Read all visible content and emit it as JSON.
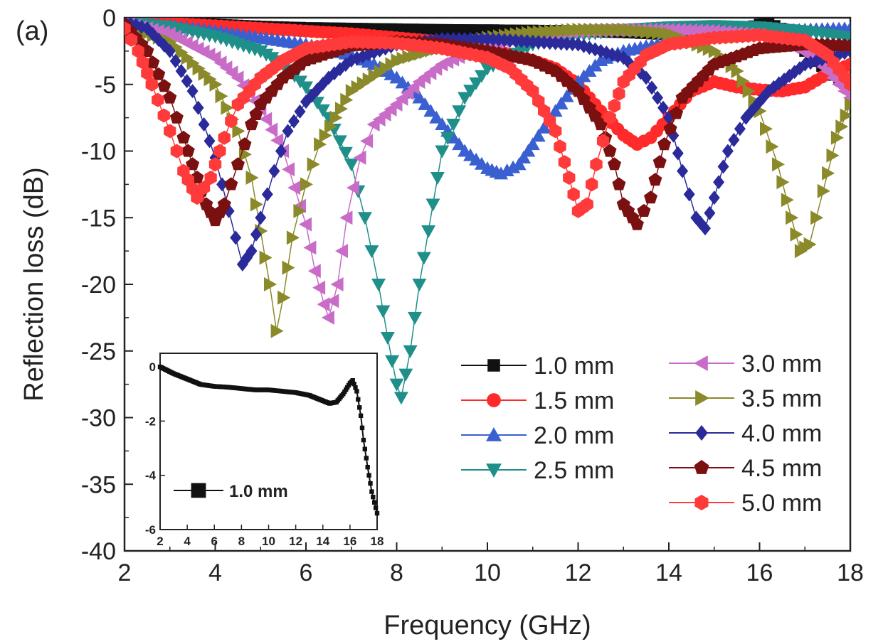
{
  "panel_label": "(a)",
  "colors": {
    "1.0 mm": "#111111",
    "1.5 mm": "#ff2a2a",
    "2.0 mm": "#3a5fd0",
    "2.5 mm": "#1f8f8a",
    "3.0 mm": "#c86cc8",
    "3.5 mm": "#8a8a2a",
    "4.0 mm": "#2a2a9a",
    "4.5 mm": "#7a1010",
    "5.0 mm": "#ff3a3a"
  },
  "chart_data": [
    {
      "type": "line",
      "title": "",
      "xlabel": "Frequency (GHz)",
      "ylabel": "Reflection loss (dB)",
      "xlim": [
        2,
        18
      ],
      "ylim": [
        -40,
        0
      ],
      "xticks": [
        2,
        4,
        6,
        8,
        10,
        12,
        14,
        16,
        18
      ],
      "yticks": [
        0,
        -5,
        -10,
        -15,
        -20,
        -25,
        -30,
        -35,
        -40
      ],
      "grid": false,
      "legend_position": "bottom-right",
      "series": [
        {
          "name": "1.0 mm",
          "marker": "square",
          "x": [
            2,
            3,
            4,
            5,
            6,
            7,
            8,
            9,
            10,
            11,
            12,
            13,
            14,
            14.5,
            15,
            15.5,
            16,
            16.2,
            16.6,
            17,
            17.5,
            18
          ],
          "y": [
            -0.1,
            -0.3,
            -0.5,
            -0.65,
            -0.75,
            -0.8,
            -0.85,
            -0.9,
            -0.92,
            -0.95,
            -1.0,
            -1.1,
            -1.25,
            -1.4,
            -1.3,
            -1.0,
            -0.5,
            -0.4,
            -1.0,
            -2.5,
            -4.0,
            -5.2
          ]
        },
        {
          "name": "1.5 mm",
          "marker": "circle",
          "x": [
            2,
            3,
            4,
            5,
            6,
            7,
            8,
            9,
            10,
            11,
            11.5,
            12,
            12.5,
            13,
            13.3,
            13.6,
            14,
            14.5,
            15,
            15.5,
            16,
            16.5,
            17,
            17.5,
            18
          ],
          "y": [
            -0.2,
            -0.4,
            -0.6,
            -0.8,
            -1.0,
            -1.2,
            -1.5,
            -1.8,
            -2.3,
            -3.2,
            -3.8,
            -5.0,
            -7.0,
            -8.8,
            -9.5,
            -9.0,
            -7.5,
            -5.5,
            -4.8,
            -5.2,
            -5.4,
            -5.5,
            -5.2,
            -4.2,
            -3.5
          ]
        },
        {
          "name": "2.0 mm",
          "marker": "triangle-up",
          "x": [
            2,
            3,
            4,
            5,
            6,
            7,
            7.5,
            8,
            8.5,
            9,
            9.5,
            10,
            10.3,
            10.7,
            11,
            11.5,
            12,
            12.5,
            13,
            14,
            15,
            16,
            17,
            18
          ],
          "y": [
            -0.3,
            -0.6,
            -1.0,
            -1.5,
            -2.0,
            -2.8,
            -3.5,
            -4.5,
            -6.0,
            -8.0,
            -10.0,
            -11.3,
            -11.7,
            -11.0,
            -9.5,
            -7.0,
            -4.8,
            -3.2,
            -2.5,
            -1.8,
            -1.4,
            -1.1,
            -0.9,
            -0.8
          ]
        },
        {
          "name": "2.5 mm",
          "marker": "triangle-down",
          "x": [
            2,
            3,
            4,
            5,
            5.5,
            6,
            6.5,
            7,
            7.3,
            7.6,
            7.8,
            8.0,
            8.1,
            8.3,
            8.5,
            8.8,
            9,
            9.5,
            10,
            11,
            12,
            13,
            14,
            15,
            16,
            17,
            18
          ],
          "y": [
            -0.3,
            -0.7,
            -1.4,
            -2.5,
            -3.5,
            -5.2,
            -7.5,
            -11.0,
            -15.0,
            -20.0,
            -24.0,
            -27.5,
            -28.5,
            -25.0,
            -20.0,
            -14.0,
            -10.0,
            -6.0,
            -3.8,
            -2.0,
            -1.3,
            -0.9,
            -0.7,
            -0.6,
            -0.7,
            -1.0,
            -1.5
          ]
        },
        {
          "name": "3.0 mm",
          "marker": "triangle-left",
          "x": [
            2,
            3,
            4,
            4.5,
            5,
            5.5,
            6,
            6.2,
            6.4,
            6.5,
            6.7,
            6.9,
            7.2,
            7.5,
            8,
            8.5,
            9,
            10,
            11,
            12,
            13,
            14,
            15,
            16,
            17,
            17.5,
            18
          ],
          "y": [
            -0.4,
            -1.2,
            -3.0,
            -4.5,
            -6.8,
            -10.0,
            -15.5,
            -19.0,
            -21.5,
            -22.5,
            -20.0,
            -15.0,
            -10.5,
            -8.0,
            -6.5,
            -4.8,
            -3.5,
            -2.0,
            -1.3,
            -1.0,
            -0.9,
            -0.9,
            -1.0,
            -1.3,
            -2.5,
            -4.0,
            -6.0
          ]
        },
        {
          "name": "3.5 mm",
          "marker": "triangle-right",
          "x": [
            2,
            3,
            4,
            4.5,
            4.8,
            5.0,
            5.2,
            5.35,
            5.5,
            5.7,
            6.0,
            6.3,
            7,
            8,
            9,
            10,
            11,
            12,
            13,
            14,
            15,
            15.5,
            16,
            16.4,
            16.7,
            16.9,
            17.1,
            17.4,
            17.7,
            18
          ],
          "y": [
            -0.5,
            -1.8,
            -5.0,
            -8.5,
            -12.0,
            -16.0,
            -20.0,
            -23.5,
            -21.0,
            -16.5,
            -12.5,
            -9.5,
            -5.5,
            -3.2,
            -2.2,
            -1.5,
            -1.1,
            -0.9,
            -0.9,
            -1.2,
            -2.5,
            -4.0,
            -7.0,
            -11.0,
            -15.0,
            -17.5,
            -17.0,
            -13.0,
            -9.0,
            -6.5
          ]
        },
        {
          "name": "4.0 mm",
          "marker": "diamond",
          "x": [
            2,
            2.5,
            3,
            3.5,
            4,
            4.3,
            4.6,
            4.8,
            5.0,
            5.3,
            5.6,
            6,
            6.5,
            7,
            8,
            9,
            10,
            11,
            12,
            13,
            13.5,
            14,
            14.3,
            14.6,
            14.8,
            15.0,
            15.3,
            15.7,
            16.2,
            17,
            18
          ],
          "y": [
            -0.3,
            -0.8,
            -2.5,
            -5.5,
            -10.5,
            -14.5,
            -18.5,
            -17.5,
            -15.0,
            -11.5,
            -8.5,
            -6.3,
            -4.5,
            -3.2,
            -2.0,
            -1.6,
            -1.6,
            -1.8,
            -2.0,
            -3.0,
            -4.5,
            -7.5,
            -11.5,
            -15.0,
            -15.8,
            -13.5,
            -10.0,
            -7.5,
            -5.5,
            -3.5,
            -2.5
          ]
        },
        {
          "name": "4.5 mm",
          "marker": "pentagon",
          "x": [
            2,
            2.5,
            3,
            3.3,
            3.6,
            3.8,
            4.0,
            4.2,
            4.5,
            4.8,
            5,
            5.5,
            6,
            7,
            8,
            9,
            10,
            11,
            11.5,
            12,
            12.5,
            12.8,
            13.0,
            13.3,
            13.6,
            13.9,
            14.3,
            15,
            16,
            17,
            18
          ],
          "y": [
            -0.5,
            -2.5,
            -6.0,
            -9.0,
            -12.0,
            -14.0,
            -15.2,
            -14.0,
            -11.0,
            -8.0,
            -6.5,
            -4.5,
            -3.2,
            -2.1,
            -1.8,
            -2.0,
            -2.5,
            -3.2,
            -4.0,
            -5.5,
            -8.0,
            -11.0,
            -14.0,
            -15.5,
            -13.5,
            -9.5,
            -6.0,
            -3.5,
            -2.3,
            -2.0,
            -2.1
          ]
        },
        {
          "name": "5.0 mm",
          "marker": "hexagon",
          "x": [
            2,
            2.3,
            2.6,
            3,
            3.3,
            3.6,
            3.9,
            4.2,
            4.5,
            5,
            5.5,
            6,
            7,
            8,
            9,
            10,
            10.5,
            11,
            11.5,
            11.8,
            12.0,
            12.2,
            12.4,
            12.7,
            13,
            13.5,
            14,
            15,
            16,
            17,
            17.5,
            18
          ],
          "y": [
            -0.8,
            -2.5,
            -5.0,
            -8.5,
            -11.5,
            -13.5,
            -12.0,
            -9.0,
            -6.5,
            -4.5,
            -3.2,
            -2.3,
            -1.8,
            -1.9,
            -2.3,
            -3.0,
            -3.8,
            -5.5,
            -8.5,
            -12.0,
            -14.5,
            -14.0,
            -11.0,
            -7.5,
            -4.8,
            -2.8,
            -2.0,
            -1.5,
            -1.3,
            -1.7,
            -2.8,
            -5.0
          ]
        }
      ]
    },
    {
      "type": "line",
      "title": "",
      "xlabel": "",
      "ylabel": "",
      "xlim": [
        2,
        18
      ],
      "ylim": [
        -6,
        0.5
      ],
      "xticks": [
        2,
        4,
        6,
        8,
        10,
        12,
        14,
        16,
        18
      ],
      "yticks": [
        0,
        -2,
        -4,
        -6
      ],
      "grid": false,
      "legend_position": "center-left",
      "series": [
        {
          "name": "1.0 mm",
          "marker": "square",
          "x": [
            2,
            3,
            4,
            5,
            6,
            7,
            8,
            9,
            10,
            11,
            12,
            13,
            14,
            14.5,
            15,
            15.5,
            16,
            16.2,
            16.5,
            16.8,
            17,
            17.3,
            17.6,
            18
          ],
          "y": [
            0.0,
            -0.25,
            -0.45,
            -0.65,
            -0.72,
            -0.75,
            -0.8,
            -0.85,
            -0.85,
            -0.9,
            -0.95,
            -1.05,
            -1.25,
            -1.35,
            -1.3,
            -1.0,
            -0.6,
            -0.5,
            -0.9,
            -1.8,
            -2.7,
            -3.7,
            -4.6,
            -5.4
          ]
        }
      ]
    }
  ]
}
